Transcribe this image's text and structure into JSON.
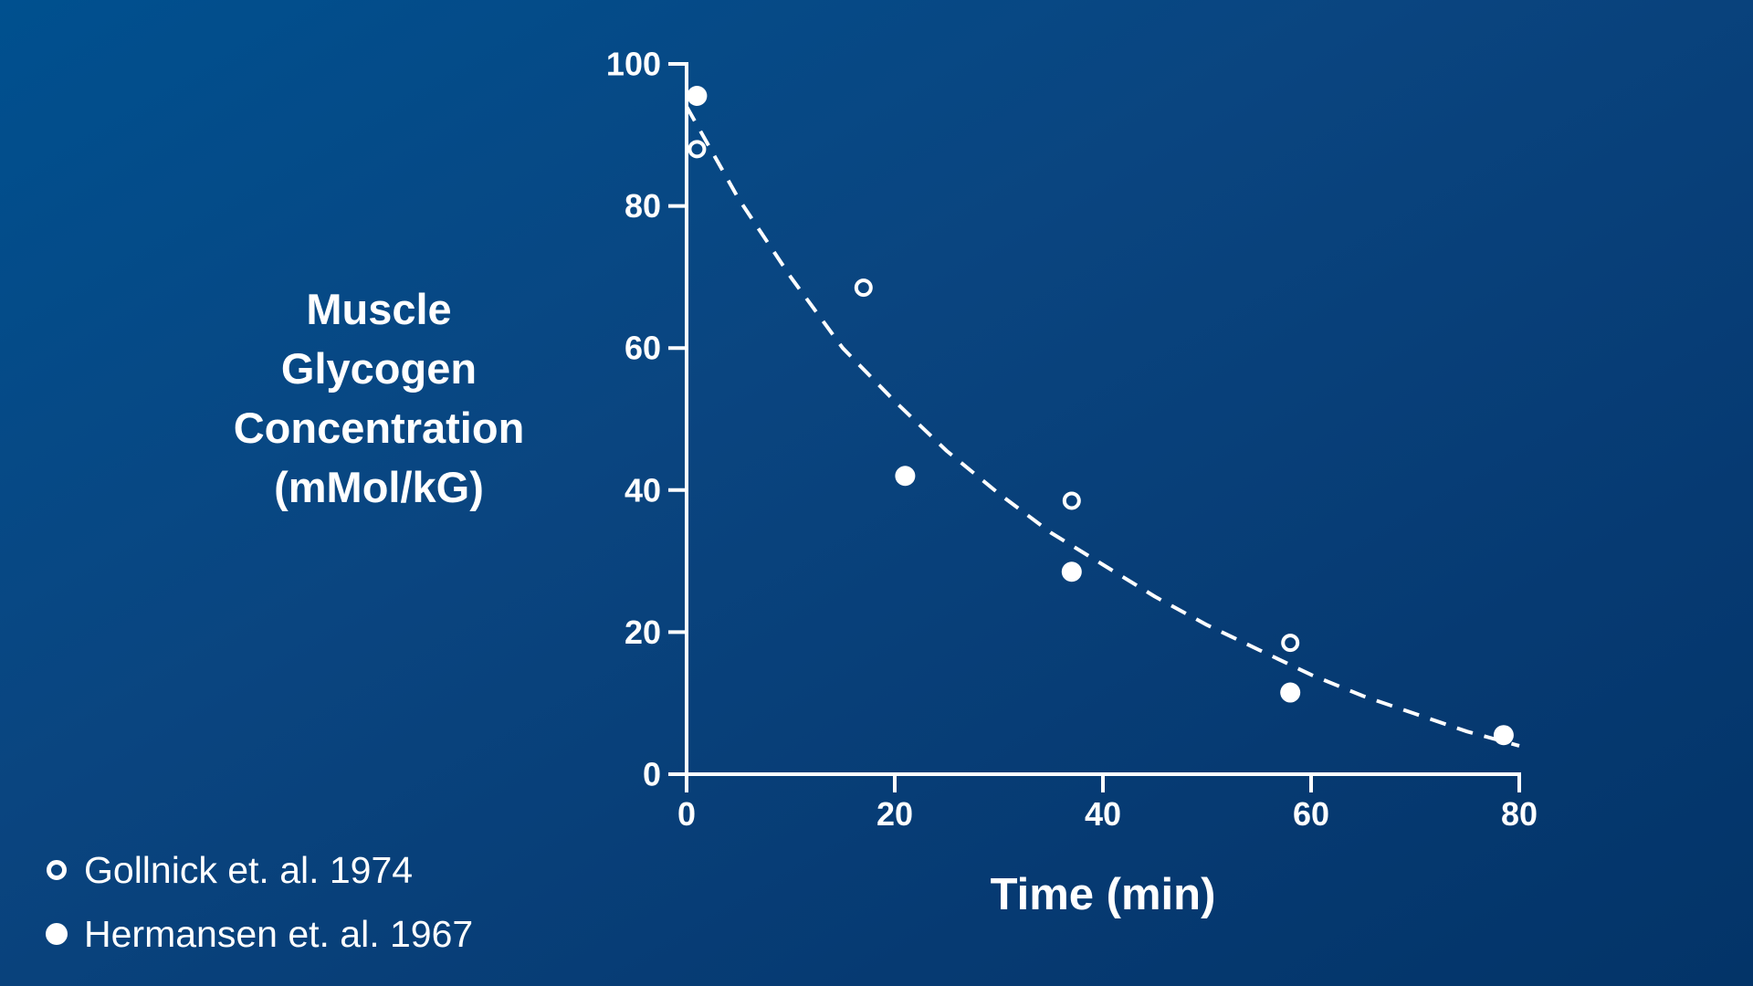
{
  "chart_data": {
    "type": "scatter",
    "title": "",
    "xlabel": "Time (min)",
    "ylabel": [
      "Muscle",
      "Glycogen",
      "Concentration",
      "(mMol/kG)"
    ],
    "xlim": [
      0,
      80
    ],
    "ylim": [
      0,
      100
    ],
    "xticks": [
      "0",
      "20",
      "40",
      "60",
      "80"
    ],
    "yticks": [
      "0",
      "20",
      "40",
      "60",
      "80",
      "100"
    ],
    "grid": false,
    "legend_position": "bottom-left",
    "series": [
      {
        "name": "Gollnick et. al. 1974",
        "marker": "open-circle",
        "x": [
          1,
          17,
          37,
          58
        ],
        "y": [
          88,
          68.5,
          38.5,
          18.5
        ]
      },
      {
        "name": "Hermansen et. al. 1967",
        "marker": "filled-circle",
        "x": [
          1,
          21,
          37,
          58,
          78.5
        ],
        "y": [
          95.5,
          42,
          28.5,
          11.5,
          5.5
        ]
      }
    ],
    "fit_curve": {
      "style": "dashed",
      "x": [
        0,
        5,
        10,
        15,
        20,
        25,
        30,
        35,
        40,
        45,
        50,
        55,
        60,
        65,
        70,
        75,
        80
      ],
      "y": [
        94,
        81,
        70,
        60,
        52.5,
        45.5,
        39.5,
        34,
        29.5,
        25,
        21,
        17.5,
        14,
        11,
        8.5,
        6,
        4
      ]
    },
    "colors": {
      "background": "#0a4580",
      "foreground": "#ffffff"
    }
  }
}
